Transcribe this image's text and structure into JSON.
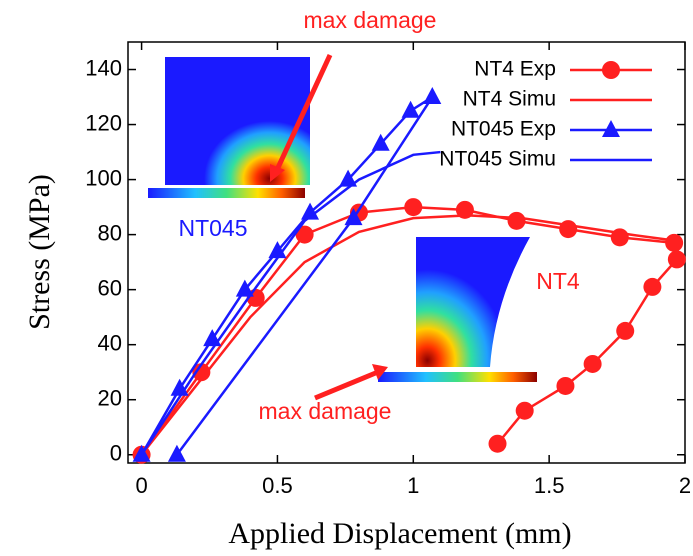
{
  "chart_data": {
    "type": "line",
    "xlabel": "Applied Displacement (mm)",
    "ylabel": "Stress (MPa)",
    "xlim": [
      -0.05,
      2
    ],
    "ylim": [
      -3,
      150
    ],
    "xticks": [
      0,
      0.5,
      1,
      1.5,
      2
    ],
    "yticks": [
      0,
      20,
      40,
      60,
      80,
      100,
      120,
      140
    ],
    "legend": "upper right",
    "annotations": [
      {
        "text": "max damage",
        "color": "#ff2020"
      },
      {
        "text": "max damage",
        "color": "#ff2020"
      },
      {
        "text": "NT045",
        "color": "#1a1aff"
      },
      {
        "text": "NT4",
        "color": "#ff2020"
      }
    ],
    "series": [
      {
        "name": "NT4 Exp",
        "color": "#ff2020",
        "marker": "circle",
        "x": [
          0,
          0.22,
          0.42,
          0.6,
          0.8,
          1.0,
          1.19,
          1.38,
          1.57,
          1.76,
          1.96,
          1.97,
          1.88,
          1.78,
          1.66,
          1.56,
          1.41,
          1.31
        ],
        "values": [
          0,
          30,
          57,
          80,
          88,
          90,
          89,
          85,
          82,
          79,
          77,
          71,
          61,
          45,
          33,
          25,
          16,
          4
        ]
      },
      {
        "name": "NT4 Simu",
        "color": "#ff2020",
        "x": [
          0,
          0.2,
          0.4,
          0.6,
          0.8,
          1.0,
          1.2,
          1.4,
          1.6,
          1.8,
          1.95
        ],
        "values": [
          0,
          25,
          50,
          70,
          81,
          86,
          87,
          86,
          83,
          80,
          78
        ]
      },
      {
        "name": "NT045 Exp",
        "color": "#1a1aff",
        "marker": "triangle",
        "x": [
          0,
          0.14,
          0.26,
          0.38,
          0.5,
          0.62,
          0.76,
          0.88,
          0.99,
          1.07,
          0.78,
          0.13
        ],
        "values": [
          0,
          24,
          42,
          60,
          74,
          88,
          100,
          113,
          125,
          130,
          86,
          0
        ]
      },
      {
        "name": "NT045 Simu",
        "color": "#1a1aff",
        "x": [
          0,
          0.2,
          0.4,
          0.6,
          0.8,
          1.0,
          1.1
        ],
        "values": [
          0,
          30,
          58,
          85,
          100,
          109,
          110
        ]
      }
    ]
  }
}
